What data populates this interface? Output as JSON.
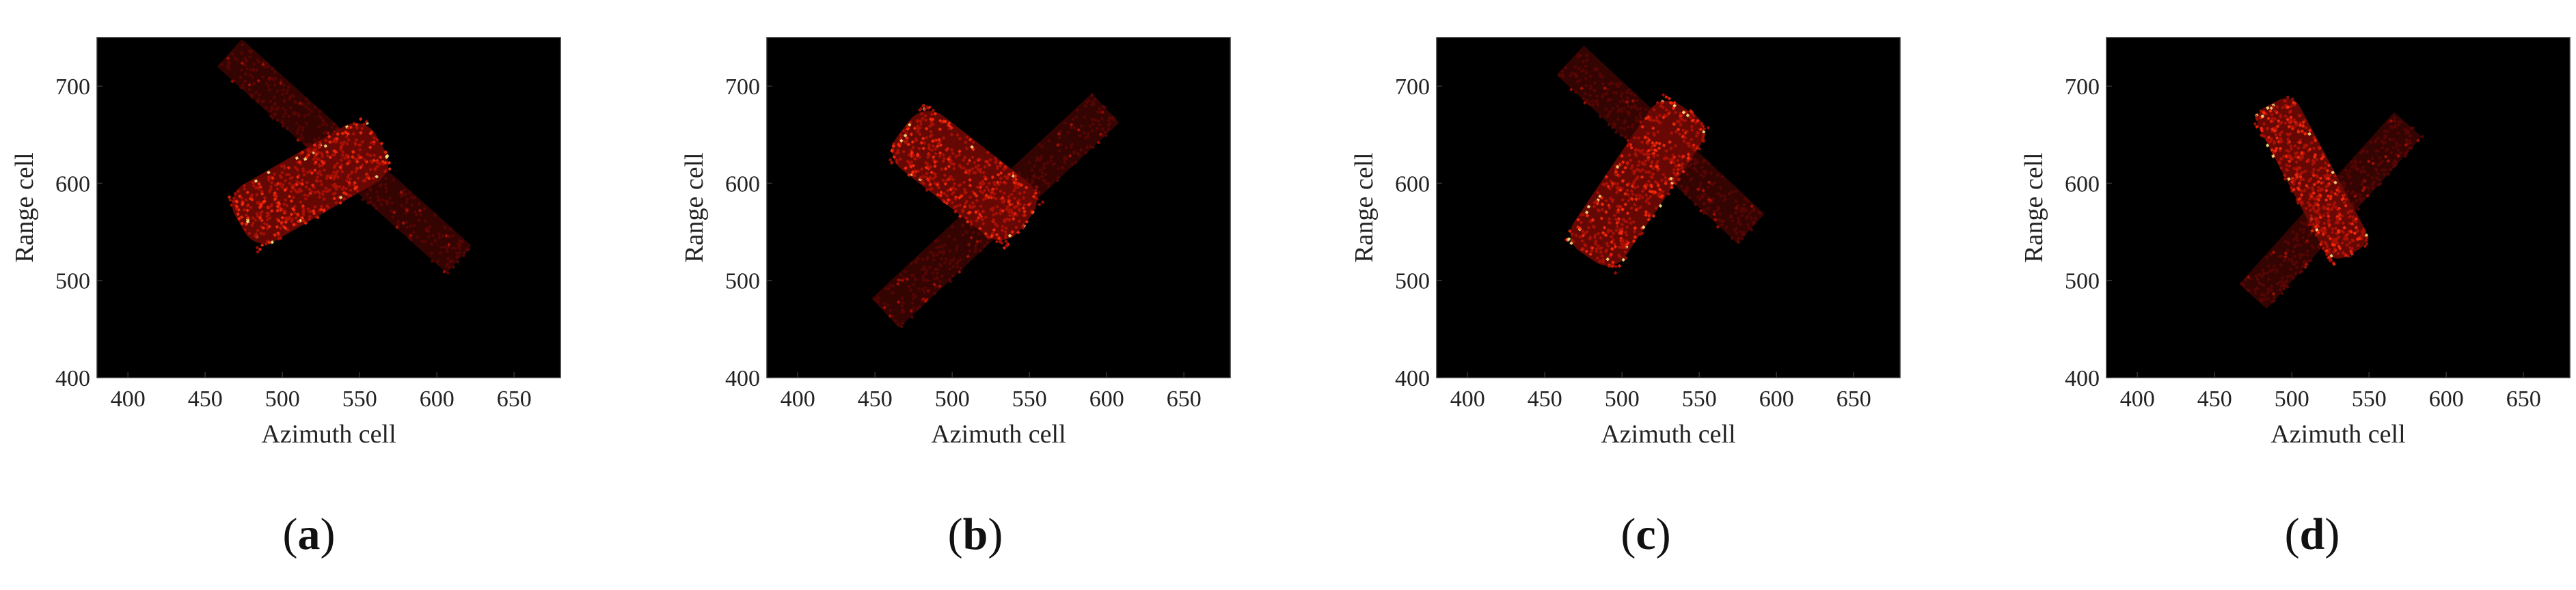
{
  "figure": {
    "panel_letters": [
      "a",
      "b",
      "c",
      "d"
    ],
    "colors": {
      "background": "#000000",
      "hot": "#ff2a0a",
      "warm": "#b01005",
      "bright": "#ffee88"
    }
  },
  "chart_data": [
    {
      "type": "heatmap",
      "panel": "a",
      "xlabel": "Azimuth cell",
      "ylabel": "Range cell",
      "xlim": [
        380,
        680
      ],
      "ylim": [
        400,
        750
      ],
      "xticks": [
        400,
        450,
        500,
        550,
        600,
        650
      ],
      "yticks": [
        400,
        500,
        600,
        700
      ],
      "colormap": "hot",
      "grid": false,
      "target": {
        "body": {
          "center": [
            518,
            600
          ],
          "length": 105,
          "width": 42,
          "angle_deg": 30,
          "intensity": "high"
        },
        "solar_panel": {
          "center": [
            540,
            628
          ],
          "length": 200,
          "width": 24,
          "angle_deg": -42,
          "intensity": "low"
        }
      }
    },
    {
      "type": "heatmap",
      "panel": "b",
      "xlabel": "Azimuth cell",
      "ylabel": "Range cell",
      "xlim": [
        380,
        680
      ],
      "ylim": [
        400,
        750
      ],
      "xticks": [
        400,
        450,
        500,
        550,
        600,
        650
      ],
      "yticks": [
        400,
        500,
        600,
        700
      ],
      "colormap": "hot",
      "grid": false,
      "target": {
        "body": {
          "center": [
            508,
            608
          ],
          "length": 100,
          "width": 44,
          "angle_deg": -38,
          "intensity": "high"
        },
        "solar_panel": {
          "center": [
            528,
            572
          ],
          "length": 195,
          "width": 26,
          "angle_deg": 43,
          "intensity": "low"
        }
      }
    },
    {
      "type": "heatmap",
      "panel": "c",
      "xlabel": "Azimuth cell",
      "ylabel": "Range cell",
      "xlim": [
        380,
        680
      ],
      "ylim": [
        400,
        750
      ],
      "xticks": [
        400,
        450,
        500,
        550,
        600,
        650
      ],
      "yticks": [
        400,
        500,
        600,
        700
      ],
      "colormap": "hot",
      "grid": false,
      "target": {
        "body": {
          "center": [
            510,
            600
          ],
          "length": 115,
          "width": 40,
          "angle_deg": 56,
          "intensity": "high"
        },
        "solar_panel": {
          "center": [
            525,
            640
          ],
          "length": 160,
          "width": 26,
          "angle_deg": -43,
          "intensity": "low"
        }
      }
    },
    {
      "type": "heatmap",
      "panel": "d",
      "xlabel": "Azimuth cell",
      "ylabel": "Range cell",
      "xlim": [
        380,
        680
      ],
      "ylim": [
        400,
        750
      ],
      "xticks": [
        400,
        450,
        500,
        550,
        600,
        650
      ],
      "yticks": [
        400,
        500,
        600,
        700
      ],
      "colormap": "hot",
      "grid": false,
      "target": {
        "body": {
          "center": [
            513,
            605
          ],
          "length": 110,
          "width": 30,
          "angle_deg": -62,
          "intensity": "high"
        },
        "solar_panel": {
          "center": [
            525,
            572
          ],
          "length": 150,
          "width": 24,
          "angle_deg": 48,
          "intensity": "low"
        }
      }
    }
  ]
}
